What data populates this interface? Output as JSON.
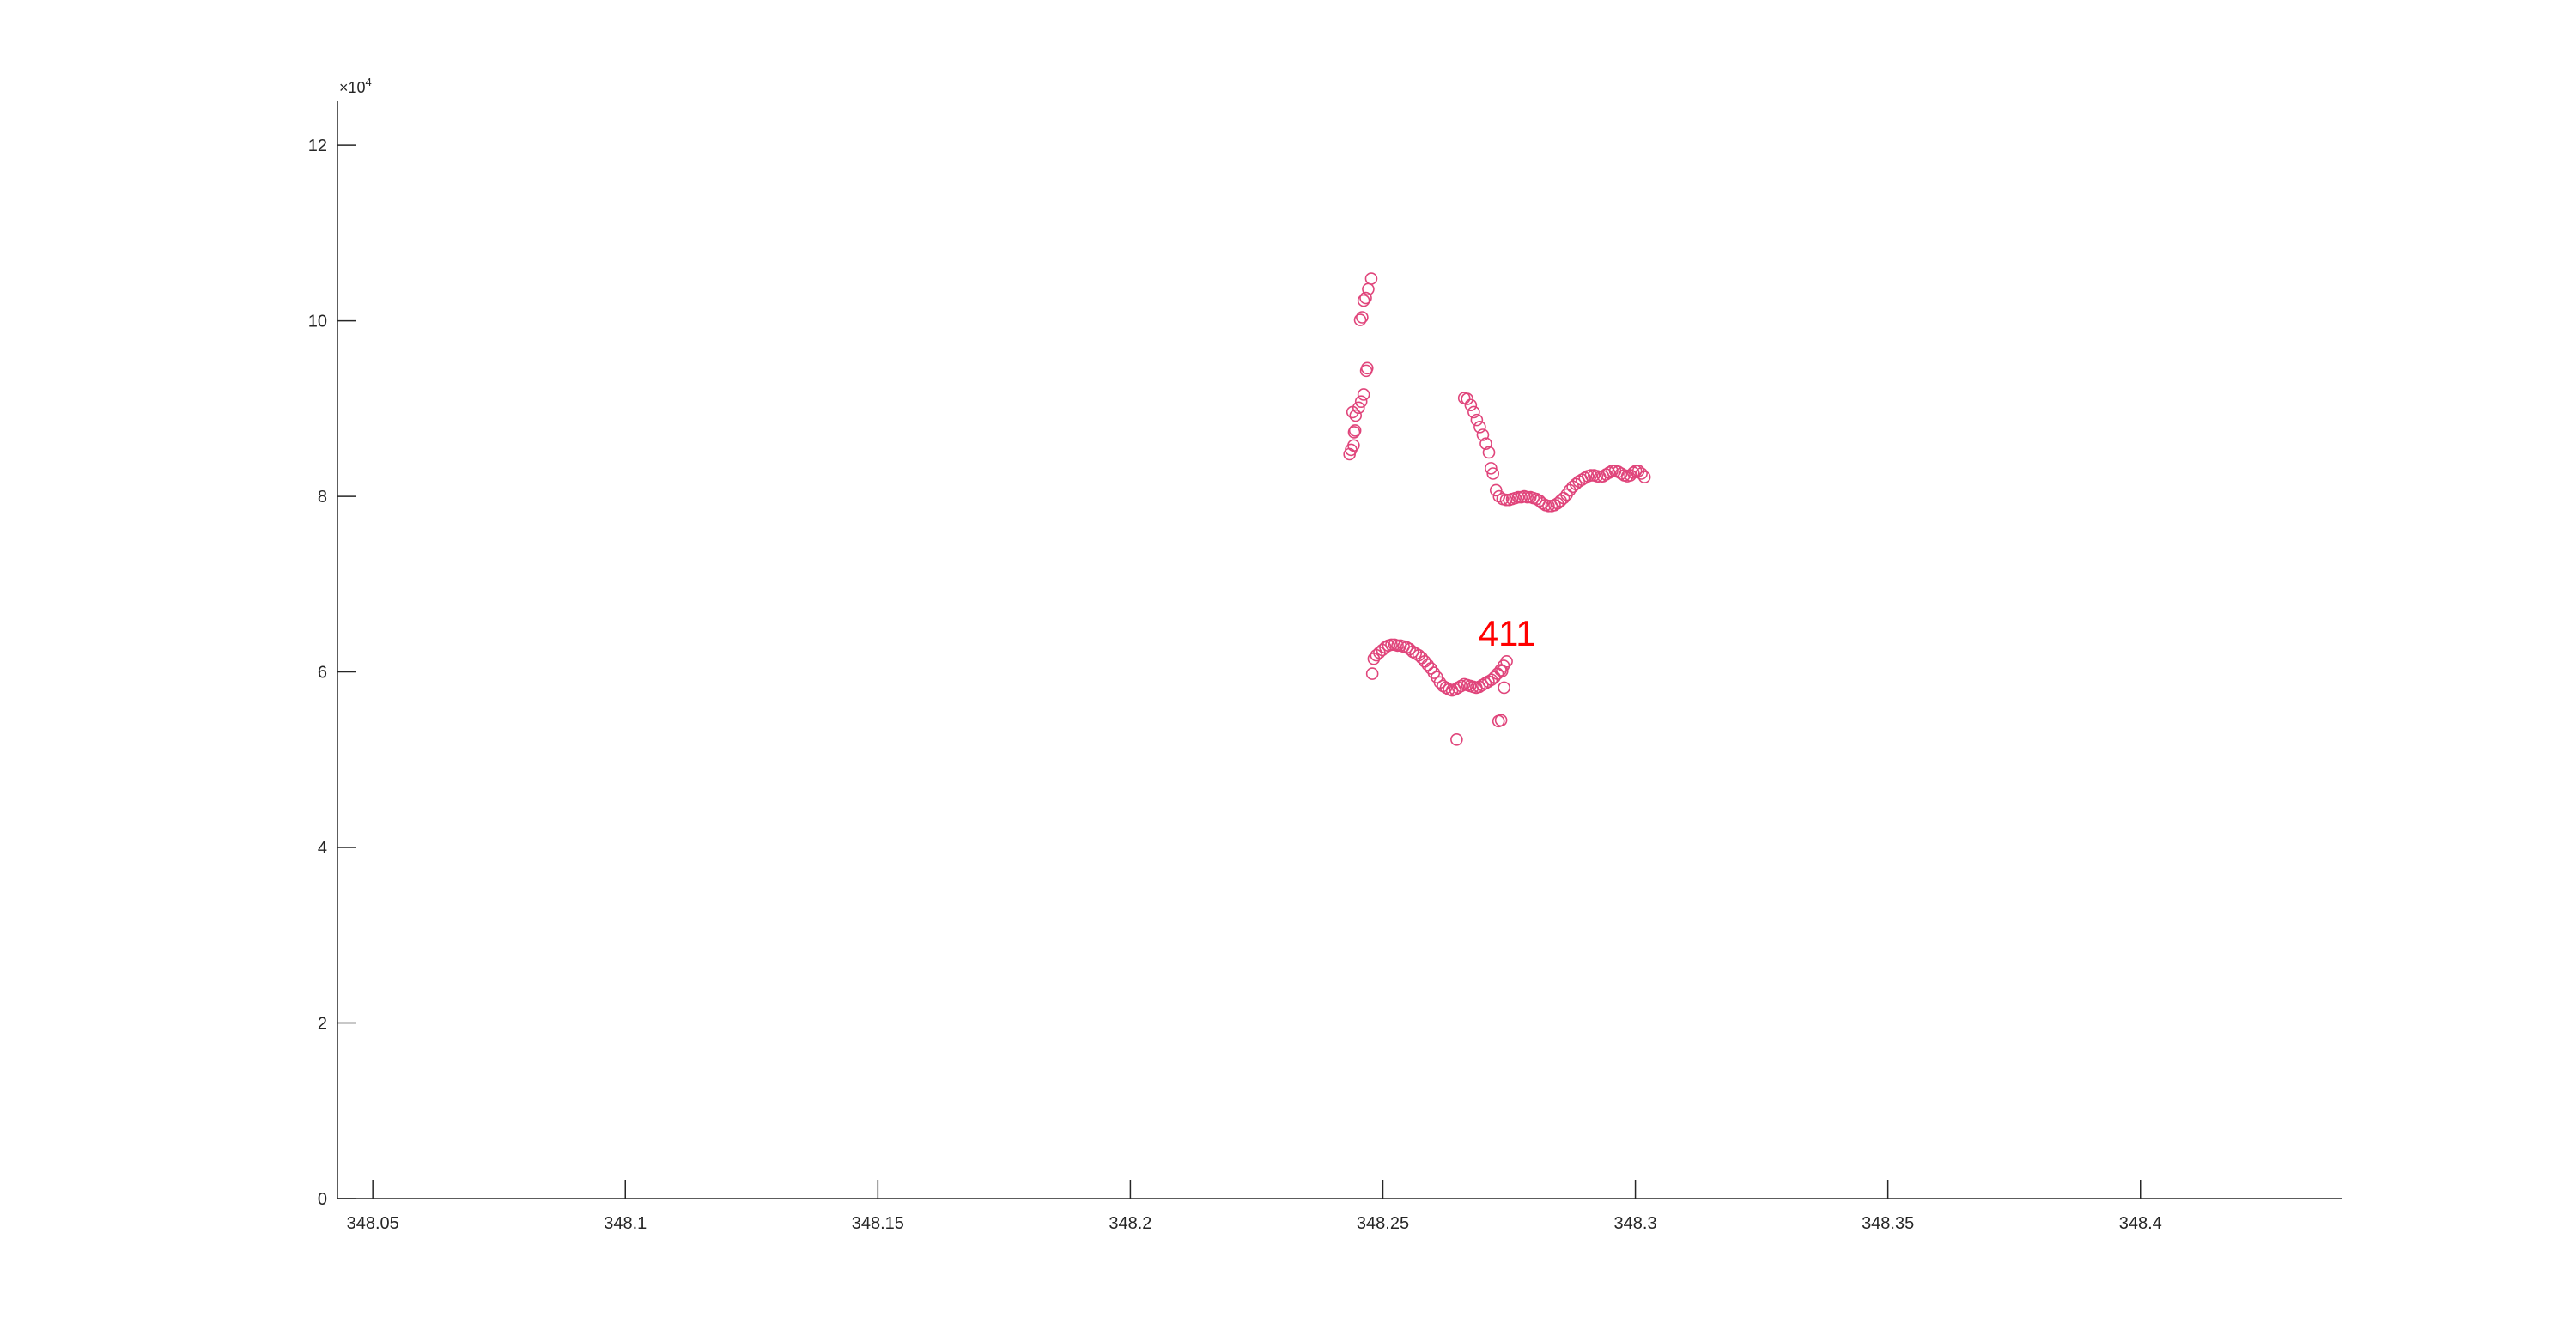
{
  "chart_data": {
    "type": "scatter",
    "title": "",
    "xlabel": "",
    "ylabel": "",
    "xlim": [
      348.043,
      348.44
    ],
    "ylim": [
      0,
      125000
    ],
    "y_exponent_label": "×10",
    "y_exponent_power": "4",
    "x_ticks": [
      348.05,
      348.1,
      348.15,
      348.2,
      348.25,
      348.3,
      348.35,
      348.4
    ],
    "x_tick_labels": [
      "348.05",
      "348.1",
      "348.15",
      "348.2",
      "348.25",
      "348.3",
      "348.35",
      "348.4"
    ],
    "y_ticks": [
      0,
      20000,
      40000,
      60000,
      80000,
      100000,
      120000
    ],
    "y_tick_labels": [
      "0",
      "2",
      "4",
      "6",
      "8",
      "10",
      "12"
    ],
    "grid": false,
    "marker": "circle-open",
    "colors": {
      "axis": "#262626",
      "marker": "#e0457b",
      "annotation": "#ff0000"
    },
    "annotations": [
      {
        "text": "411",
        "x": 348.2746,
        "y": 63000
      }
    ],
    "series": [
      {
        "points": [
          [
            348.2434,
            84800
          ],
          [
            348.2437,
            85300
          ],
          [
            348.2442,
            85800
          ],
          [
            348.2443,
            87300
          ],
          [
            348.2445,
            87500
          ],
          [
            348.244,
            89600
          ],
          [
            348.2446,
            89200
          ],
          [
            348.2452,
            90100
          ],
          [
            348.2457,
            90800
          ],
          [
            348.2462,
            91600
          ],
          [
            348.2467,
            94300
          ],
          [
            348.2469,
            94600
          ],
          [
            348.2455,
            100100
          ],
          [
            348.2459,
            100400
          ],
          [
            348.2462,
            102300
          ],
          [
            348.2466,
            102600
          ],
          [
            348.2471,
            103600
          ],
          [
            348.2477,
            104800
          ],
          [
            348.2479,
            59800
          ],
          [
            348.2482,
            61500
          ],
          [
            348.2487,
            61900
          ],
          [
            348.2493,
            62200
          ],
          [
            348.2499,
            62500
          ],
          [
            348.2505,
            62800
          ],
          [
            348.2511,
            63000
          ],
          [
            348.2517,
            63100
          ],
          [
            348.2523,
            63100
          ],
          [
            348.2529,
            63000
          ],
          [
            348.2535,
            63000
          ],
          [
            348.2541,
            62900
          ],
          [
            348.2547,
            62800
          ],
          [
            348.2553,
            62600
          ],
          [
            348.2559,
            62300
          ],
          [
            348.2565,
            62100
          ],
          [
            348.2571,
            61900
          ],
          [
            348.2577,
            61600
          ],
          [
            348.2583,
            61200
          ],
          [
            348.2589,
            60800
          ],
          [
            348.2595,
            60400
          ],
          [
            348.2601,
            59900
          ],
          [
            348.2607,
            59400
          ],
          [
            348.2613,
            58800
          ],
          [
            348.2619,
            58400
          ],
          [
            348.2625,
            58200
          ],
          [
            348.2631,
            58000
          ],
          [
            348.2637,
            57900
          ],
          [
            348.2643,
            58000
          ],
          [
            348.2649,
            58200
          ],
          [
            348.2655,
            58400
          ],
          [
            348.2661,
            58600
          ],
          [
            348.2667,
            58500
          ],
          [
            348.2673,
            58400
          ],
          [
            348.2679,
            58300
          ],
          [
            348.2685,
            58200
          ],
          [
            348.2691,
            58300
          ],
          [
            348.2697,
            58500
          ],
          [
            348.2703,
            58700
          ],
          [
            348.2709,
            58900
          ],
          [
            348.2715,
            59100
          ],
          [
            348.2721,
            59400
          ],
          [
            348.2727,
            59800
          ],
          [
            348.2733,
            60200
          ],
          [
            348.2739,
            60700
          ],
          [
            348.2745,
            61200
          ],
          [
            348.274,
            58200
          ],
          [
            348.2736,
            60100
          ],
          [
            348.2646,
            52300
          ],
          [
            348.2729,
            54400
          ],
          [
            348.2734,
            54500
          ],
          [
            348.2661,
            91200
          ],
          [
            348.2667,
            91100
          ],
          [
            348.2674,
            90400
          ],
          [
            348.268,
            89600
          ],
          [
            348.2686,
            88700
          ],
          [
            348.2692,
            87900
          ],
          [
            348.2698,
            87000
          ],
          [
            348.2704,
            86000
          ],
          [
            348.271,
            85000
          ],
          [
            348.2714,
            83200
          ],
          [
            348.2718,
            82600
          ],
          [
            348.2724,
            80700
          ],
          [
            348.273,
            80000
          ],
          [
            348.2737,
            79700
          ],
          [
            348.2744,
            79600
          ],
          [
            348.275,
            79600
          ],
          [
            348.2756,
            79700
          ],
          [
            348.2762,
            79800
          ],
          [
            348.2768,
            79900
          ],
          [
            348.2774,
            79900
          ],
          [
            348.278,
            80000
          ],
          [
            348.2786,
            79900
          ],
          [
            348.2792,
            79900
          ],
          [
            348.2798,
            79800
          ],
          [
            348.2804,
            79700
          ],
          [
            348.281,
            79500
          ],
          [
            348.2816,
            79200
          ],
          [
            348.2822,
            79000
          ],
          [
            348.2828,
            78900
          ],
          [
            348.2834,
            78900
          ],
          [
            348.284,
            79000
          ],
          [
            348.2846,
            79200
          ],
          [
            348.2852,
            79500
          ],
          [
            348.2858,
            79800
          ],
          [
            348.2864,
            80200
          ],
          [
            348.287,
            80700
          ],
          [
            348.2876,
            81100
          ],
          [
            348.2882,
            81400
          ],
          [
            348.2888,
            81700
          ],
          [
            348.2894,
            81900
          ],
          [
            348.29,
            82100
          ],
          [
            348.2906,
            82300
          ],
          [
            348.2912,
            82400
          ],
          [
            348.2918,
            82400
          ],
          [
            348.2924,
            82300
          ],
          [
            348.293,
            82200
          ],
          [
            348.2936,
            82300
          ],
          [
            348.2942,
            82500
          ],
          [
            348.2948,
            82700
          ],
          [
            348.2954,
            82900
          ],
          [
            348.296,
            82900
          ],
          [
            348.2966,
            82800
          ],
          [
            348.2972,
            82600
          ],
          [
            348.2978,
            82400
          ],
          [
            348.2984,
            82300
          ],
          [
            348.299,
            82400
          ],
          [
            348.2996,
            82700
          ],
          [
            348.3001,
            82900
          ],
          [
            348.3006,
            82900
          ],
          [
            348.3012,
            82600
          ],
          [
            348.3018,
            82200
          ]
        ]
      }
    ]
  }
}
